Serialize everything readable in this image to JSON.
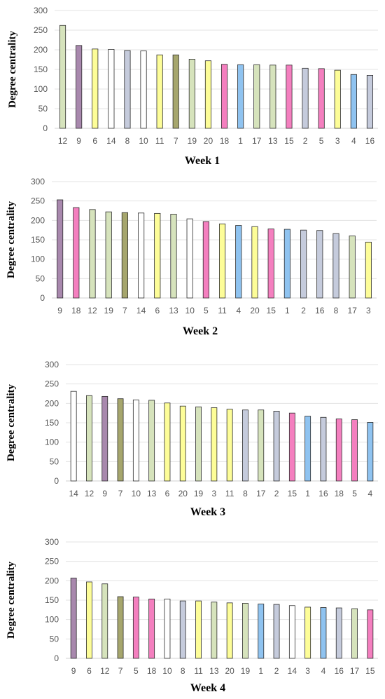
{
  "colors": {
    "green": "#d6e3bc",
    "purple": "#a888ad",
    "yellow": "#fdfd98",
    "white": "#ffffff",
    "gray": "#c5cbdc",
    "olive": "#a6a66d",
    "pink": "#f47fbf",
    "blue": "#8fc3f0",
    "outline": "#2b2b2b"
  },
  "chart_data": [
    {
      "type": "bar",
      "title": "Week 1",
      "ylabel": "Degree centrality",
      "ylim": [
        0,
        300
      ],
      "yticks": [
        0,
        50,
        100,
        150,
        200,
        250,
        300
      ],
      "grid": true,
      "categories": [
        "12",
        "9",
        "6",
        "14",
        "8",
        "10",
        "11",
        "7",
        "19",
        "20",
        "18",
        "1",
        "17",
        "13",
        "15",
        "2",
        "5",
        "3",
        "4",
        "16"
      ],
      "values": [
        262,
        211,
        202,
        201,
        198,
        197,
        187,
        187,
        176,
        172,
        163,
        162,
        162,
        161,
        161,
        153,
        152,
        148,
        137,
        135
      ],
      "bar_colors": [
        "green",
        "purple",
        "yellow",
        "white",
        "gray",
        "white",
        "yellow",
        "olive",
        "green",
        "yellow",
        "pink",
        "blue",
        "green",
        "green",
        "pink",
        "gray",
        "pink",
        "yellow",
        "blue",
        "gray"
      ]
    },
    {
      "type": "bar",
      "title": "Week 2",
      "ylabel": "Degree centrality",
      "ylim": [
        0,
        300
      ],
      "yticks": [
        0,
        50,
        100,
        150,
        200,
        250,
        300
      ],
      "grid": true,
      "categories": [
        "9",
        "18",
        "12",
        "19",
        "7",
        "14",
        "6",
        "13",
        "10",
        "5",
        "11",
        "4",
        "20",
        "15",
        "1",
        "2",
        "16",
        "8",
        "17",
        "3"
      ],
      "values": [
        253,
        233,
        228,
        222,
        220,
        219,
        218,
        216,
        204,
        197,
        191,
        187,
        184,
        178,
        177,
        175,
        174,
        166,
        160,
        144
      ],
      "bar_colors": [
        "purple",
        "pink",
        "green",
        "green",
        "olive",
        "white",
        "yellow",
        "green",
        "white",
        "pink",
        "yellow",
        "blue",
        "yellow",
        "pink",
        "blue",
        "gray",
        "gray",
        "gray",
        "green",
        "yellow"
      ]
    },
    {
      "type": "bar",
      "title": "Week 3",
      "ylabel": "Degree centrality",
      "ylim": [
        0,
        300
      ],
      "yticks": [
        0,
        50,
        100,
        150,
        200,
        250,
        300
      ],
      "grid": true,
      "categories": [
        "14",
        "12",
        "9",
        "7",
        "10",
        "13",
        "6",
        "20",
        "19",
        "3",
        "11",
        "8",
        "17",
        "2",
        "15",
        "1",
        "16",
        "18",
        "5",
        "4"
      ],
      "values": [
        231,
        220,
        218,
        212,
        209,
        208,
        201,
        193,
        191,
        189,
        185,
        183,
        183,
        180,
        175,
        167,
        164,
        160,
        158,
        151
      ],
      "bar_colors": [
        "white",
        "green",
        "purple",
        "olive",
        "white",
        "green",
        "yellow",
        "yellow",
        "green",
        "yellow",
        "yellow",
        "gray",
        "green",
        "gray",
        "pink",
        "blue",
        "gray",
        "pink",
        "pink",
        "blue"
      ]
    },
    {
      "type": "bar",
      "title": "Week 4",
      "ylabel": "Degree centrality",
      "ylim": [
        0,
        300
      ],
      "yticks": [
        0,
        50,
        100,
        150,
        200,
        250,
        300
      ],
      "grid": true,
      "categories": [
        "9",
        "6",
        "12",
        "7",
        "5",
        "18",
        "10",
        "8",
        "11",
        "13",
        "20",
        "19",
        "1",
        "2",
        "14",
        "3",
        "4",
        "16",
        "17",
        "15"
      ],
      "values": [
        207,
        197,
        192,
        159,
        158,
        153,
        153,
        148,
        148,
        145,
        143,
        142,
        140,
        139,
        136,
        132,
        131,
        130,
        128,
        125
      ],
      "bar_colors": [
        "purple",
        "yellow",
        "green",
        "olive",
        "pink",
        "pink",
        "white",
        "gray",
        "yellow",
        "green",
        "yellow",
        "green",
        "blue",
        "gray",
        "white",
        "yellow",
        "blue",
        "gray",
        "green",
        "pink"
      ]
    }
  ]
}
